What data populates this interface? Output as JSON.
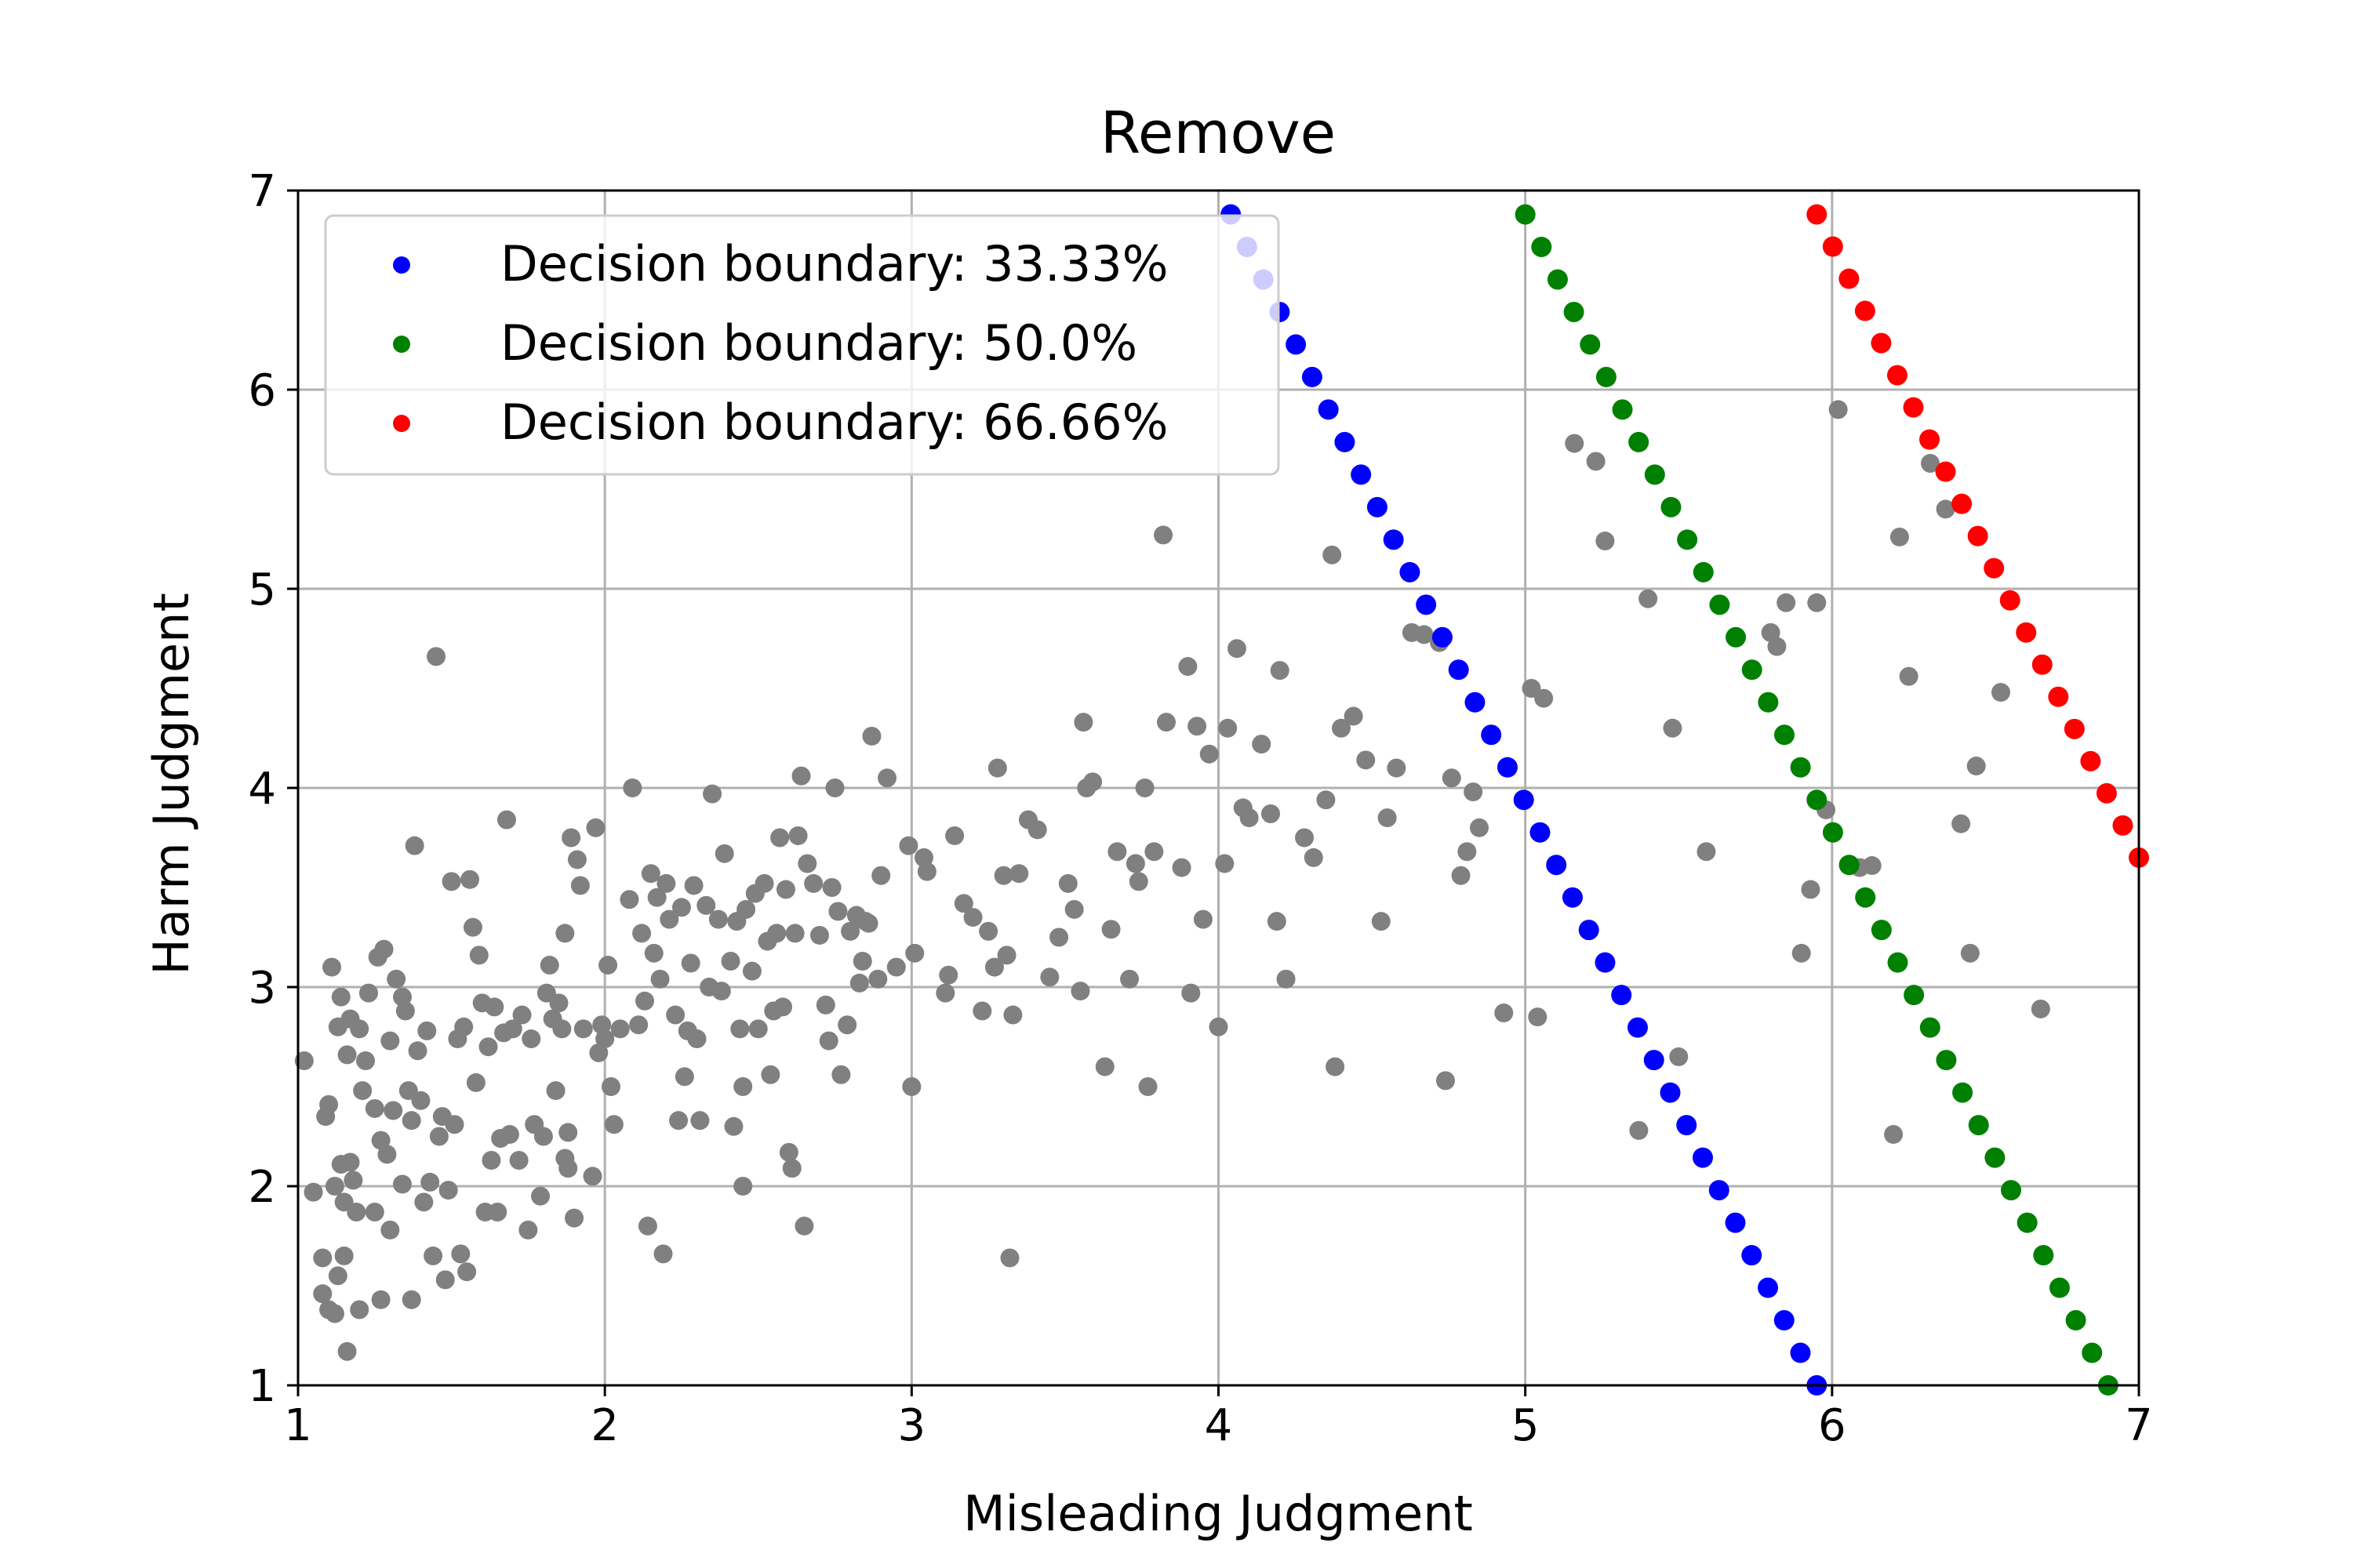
{
  "chart_data": {
    "type": "scatter",
    "title": "Remove",
    "xlabel": "Misleading Judgment",
    "ylabel": "Harm Judgment",
    "xlim": [
      1,
      7
    ],
    "ylim": [
      1,
      7
    ],
    "xticks": [
      "1",
      "2",
      "3",
      "4",
      "5",
      "6",
      "7"
    ],
    "yticks": [
      "1",
      "2",
      "3",
      "4",
      "5",
      "6",
      "7"
    ],
    "grid": true,
    "legend_position": "top-left",
    "colors": {
      "points": "#808080",
      "b33": "#0000ff",
      "b50": "#008000",
      "b66": "#ff0000",
      "grid": "#b0b0b0"
    },
    "series": [
      {
        "name": "Decision boundary: 33.33%",
        "color": "#0000ff",
        "kind": "line-dots",
        "start": [
          4.04,
          6.88
        ],
        "end": [
          5.95,
          1.0
        ],
        "count": 37
      },
      {
        "name": "Decision boundary: 50.0%",
        "color": "#008000",
        "kind": "line-dots",
        "start": [
          5.0,
          6.88
        ],
        "end": [
          6.9,
          1.0
        ],
        "count": 37
      },
      {
        "name": "Decision boundary: 66.66%",
        "color": "#ff0000",
        "kind": "line-dots",
        "start": [
          5.95,
          6.88
        ],
        "end": [
          7.0,
          3.65
        ],
        "count": 21
      }
    ],
    "points": [
      [
        1.02,
        2.63
      ],
      [
        1.05,
        1.97
      ],
      [
        1.08,
        1.64
      ],
      [
        1.08,
        1.46
      ],
      [
        1.09,
        2.35
      ],
      [
        1.1,
        2.41
      ],
      [
        1.1,
        1.38
      ],
      [
        1.11,
        3.1
      ],
      [
        1.12,
        1.36
      ],
      [
        1.12,
        2.0
      ],
      [
        1.13,
        2.8
      ],
      [
        1.13,
        1.55
      ],
      [
        1.14,
        2.11
      ],
      [
        1.14,
        2.95
      ],
      [
        1.15,
        1.65
      ],
      [
        1.15,
        1.92
      ],
      [
        1.16,
        2.66
      ],
      [
        1.16,
        1.17
      ],
      [
        1.17,
        2.12
      ],
      [
        1.17,
        2.84
      ],
      [
        1.18,
        2.03
      ],
      [
        1.19,
        1.87
      ],
      [
        1.2,
        2.79
      ],
      [
        1.2,
        1.38
      ],
      [
        1.21,
        2.48
      ],
      [
        1.22,
        2.63
      ],
      [
        1.23,
        2.97
      ],
      [
        1.25,
        2.39
      ],
      [
        1.25,
        1.87
      ],
      [
        1.26,
        3.15
      ],
      [
        1.27,
        1.43
      ],
      [
        1.27,
        2.23
      ],
      [
        1.28,
        3.19
      ],
      [
        1.29,
        2.16
      ],
      [
        1.3,
        2.73
      ],
      [
        1.3,
        1.78
      ],
      [
        1.31,
        2.38
      ],
      [
        1.32,
        3.04
      ],
      [
        1.34,
        2.01
      ],
      [
        1.34,
        2.95
      ],
      [
        1.35,
        2.88
      ],
      [
        1.36,
        2.48
      ],
      [
        1.37,
        2.33
      ],
      [
        1.37,
        1.43
      ],
      [
        1.38,
        3.71
      ],
      [
        1.39,
        2.68
      ],
      [
        1.4,
        2.43
      ],
      [
        1.41,
        1.92
      ],
      [
        1.42,
        2.78
      ],
      [
        1.43,
        2.02
      ],
      [
        1.44,
        1.65
      ],
      [
        1.45,
        4.66
      ],
      [
        1.46,
        2.25
      ],
      [
        1.47,
        2.35
      ],
      [
        1.48,
        1.53
      ],
      [
        1.49,
        1.98
      ],
      [
        1.5,
        3.53
      ],
      [
        1.51,
        2.31
      ],
      [
        1.52,
        2.74
      ],
      [
        1.53,
        1.66
      ],
      [
        1.54,
        2.8
      ],
      [
        1.55,
        1.57
      ],
      [
        1.56,
        3.54
      ],
      [
        1.57,
        3.3
      ],
      [
        1.58,
        2.52
      ],
      [
        1.59,
        3.16
      ],
      [
        1.6,
        2.92
      ],
      [
        1.61,
        1.87
      ],
      [
        1.62,
        2.7
      ],
      [
        1.63,
        2.13
      ],
      [
        1.64,
        2.9
      ],
      [
        1.65,
        1.87
      ],
      [
        1.66,
        2.24
      ],
      [
        1.67,
        2.77
      ],
      [
        1.68,
        3.84
      ],
      [
        1.69,
        2.26
      ],
      [
        1.7,
        2.79
      ],
      [
        1.72,
        2.13
      ],
      [
        1.73,
        2.86
      ],
      [
        1.75,
        1.78
      ],
      [
        1.76,
        2.74
      ],
      [
        1.77,
        2.31
      ],
      [
        1.79,
        1.95
      ],
      [
        1.8,
        2.25
      ],
      [
        1.81,
        2.97
      ],
      [
        1.82,
        3.11
      ],
      [
        1.83,
        2.84
      ],
      [
        1.84,
        2.48
      ],
      [
        1.85,
        2.92
      ],
      [
        1.86,
        2.79
      ],
      [
        1.87,
        3.27
      ],
      [
        1.87,
        2.14
      ],
      [
        1.88,
        2.27
      ],
      [
        1.88,
        2.09
      ],
      [
        1.89,
        3.75
      ],
      [
        1.9,
        1.84
      ],
      [
        1.91,
        3.64
      ],
      [
        1.92,
        3.51
      ],
      [
        1.93,
        2.79
      ],
      [
        1.96,
        2.05
      ],
      [
        1.97,
        3.8
      ],
      [
        1.98,
        2.67
      ],
      [
        1.99,
        2.81
      ],
      [
        2.0,
        2.74
      ],
      [
        2.01,
        3.11
      ],
      [
        2.02,
        2.5
      ],
      [
        2.03,
        2.31
      ],
      [
        2.05,
        2.79
      ],
      [
        2.08,
        3.44
      ],
      [
        2.09,
        4.0
      ],
      [
        2.11,
        2.81
      ],
      [
        2.12,
        3.27
      ],
      [
        2.13,
        2.93
      ],
      [
        2.14,
        1.8
      ],
      [
        2.15,
        3.57
      ],
      [
        2.16,
        3.17
      ],
      [
        2.17,
        3.45
      ],
      [
        2.18,
        3.04
      ],
      [
        2.19,
        1.66
      ],
      [
        2.2,
        3.52
      ],
      [
        2.21,
        3.34
      ],
      [
        2.23,
        2.86
      ],
      [
        2.24,
        2.33
      ],
      [
        2.25,
        3.4
      ],
      [
        2.26,
        2.55
      ],
      [
        2.27,
        2.78
      ],
      [
        2.28,
        3.12
      ],
      [
        2.29,
        3.51
      ],
      [
        2.3,
        2.74
      ],
      [
        2.31,
        2.33
      ],
      [
        2.33,
        3.41
      ],
      [
        2.34,
        3.0
      ],
      [
        2.35,
        3.97
      ],
      [
        2.37,
        3.34
      ],
      [
        2.38,
        2.98
      ],
      [
        2.39,
        3.67
      ],
      [
        2.41,
        3.13
      ],
      [
        2.42,
        2.3
      ],
      [
        2.43,
        3.33
      ],
      [
        2.44,
        2.79
      ],
      [
        2.45,
        2.5
      ],
      [
        2.45,
        2.0
      ],
      [
        2.46,
        3.39
      ],
      [
        2.48,
        3.08
      ],
      [
        2.49,
        3.47
      ],
      [
        2.5,
        2.79
      ],
      [
        2.52,
        3.52
      ],
      [
        2.53,
        3.23
      ],
      [
        2.54,
        2.56
      ],
      [
        2.55,
        2.88
      ],
      [
        2.56,
        3.27
      ],
      [
        2.57,
        3.75
      ],
      [
        2.58,
        2.9
      ],
      [
        2.59,
        3.49
      ],
      [
        2.6,
        2.17
      ],
      [
        2.61,
        2.09
      ],
      [
        2.62,
        3.27
      ],
      [
        2.63,
        3.76
      ],
      [
        2.64,
        4.06
      ],
      [
        2.65,
        1.8
      ],
      [
        2.66,
        3.62
      ],
      [
        2.68,
        3.52
      ],
      [
        2.7,
        3.26
      ],
      [
        2.72,
        2.91
      ],
      [
        2.73,
        2.73
      ],
      [
        2.74,
        3.5
      ],
      [
        2.75,
        4.0
      ],
      [
        2.76,
        3.38
      ],
      [
        2.77,
        2.56
      ],
      [
        2.79,
        2.81
      ],
      [
        2.8,
        3.28
      ],
      [
        2.82,
        3.36
      ],
      [
        2.83,
        3.02
      ],
      [
        2.84,
        3.13
      ],
      [
        2.85,
        3.33
      ],
      [
        2.86,
        3.32
      ],
      [
        2.87,
        4.26
      ],
      [
        2.89,
        3.04
      ],
      [
        2.9,
        3.56
      ],
      [
        2.92,
        4.05
      ],
      [
        2.95,
        3.1
      ],
      [
        2.99,
        3.71
      ],
      [
        3.0,
        2.5
      ],
      [
        3.01,
        3.17
      ],
      [
        3.04,
        3.65
      ],
      [
        3.05,
        3.58
      ],
      [
        3.11,
        2.97
      ],
      [
        3.12,
        3.06
      ],
      [
        3.14,
        3.76
      ],
      [
        3.17,
        3.42
      ],
      [
        3.2,
        3.35
      ],
      [
        3.23,
        2.88
      ],
      [
        3.25,
        3.28
      ],
      [
        3.27,
        3.1
      ],
      [
        3.28,
        4.1
      ],
      [
        3.3,
        3.56
      ],
      [
        3.31,
        3.16
      ],
      [
        3.32,
        1.64
      ],
      [
        3.33,
        2.86
      ],
      [
        3.35,
        3.57
      ],
      [
        3.38,
        3.84
      ],
      [
        3.41,
        3.79
      ],
      [
        3.45,
        3.05
      ],
      [
        3.48,
        3.25
      ],
      [
        3.51,
        3.52
      ],
      [
        3.53,
        3.39
      ],
      [
        3.55,
        2.98
      ],
      [
        3.56,
        4.33
      ],
      [
        3.57,
        4.0
      ],
      [
        3.59,
        4.03
      ],
      [
        3.63,
        2.6
      ],
      [
        3.65,
        3.29
      ],
      [
        3.67,
        3.68
      ],
      [
        3.71,
        3.04
      ],
      [
        3.73,
        3.62
      ],
      [
        3.74,
        3.53
      ],
      [
        3.76,
        4.0
      ],
      [
        3.77,
        2.5
      ],
      [
        3.79,
        3.68
      ],
      [
        3.82,
        5.27
      ],
      [
        3.83,
        4.33
      ],
      [
        3.88,
        3.6
      ],
      [
        3.9,
        4.61
      ],
      [
        3.91,
        2.97
      ],
      [
        3.93,
        4.31
      ],
      [
        3.95,
        3.34
      ],
      [
        3.97,
        4.17
      ],
      [
        4.0,
        2.8
      ],
      [
        4.02,
        3.62
      ],
      [
        4.03,
        4.3
      ],
      [
        4.06,
        4.7
      ],
      [
        4.08,
        3.9
      ],
      [
        4.1,
        3.85
      ],
      [
        4.14,
        4.22
      ],
      [
        4.17,
        3.87
      ],
      [
        4.19,
        3.33
      ],
      [
        4.2,
        4.59
      ],
      [
        4.22,
        3.04
      ],
      [
        4.28,
        3.75
      ],
      [
        4.31,
        3.65
      ],
      [
        4.35,
        3.94
      ],
      [
        4.37,
        5.17
      ],
      [
        4.38,
        2.6
      ],
      [
        4.4,
        4.3
      ],
      [
        4.44,
        4.36
      ],
      [
        4.48,
        4.14
      ],
      [
        4.53,
        3.33
      ],
      [
        4.55,
        3.85
      ],
      [
        4.58,
        4.1
      ],
      [
        4.63,
        4.78
      ],
      [
        4.67,
        4.77
      ],
      [
        4.72,
        4.73
      ],
      [
        4.74,
        2.53
      ],
      [
        4.76,
        4.05
      ],
      [
        4.79,
        3.56
      ],
      [
        4.81,
        3.68
      ],
      [
        4.83,
        3.98
      ],
      [
        4.85,
        3.8
      ],
      [
        4.93,
        2.87
      ],
      [
        5.02,
        4.5
      ],
      [
        5.04,
        2.85
      ],
      [
        5.06,
        4.45
      ],
      [
        5.16,
        5.73
      ],
      [
        5.23,
        5.64
      ],
      [
        5.26,
        5.24
      ],
      [
        5.37,
        2.28
      ],
      [
        5.4,
        4.95
      ],
      [
        5.48,
        4.3
      ],
      [
        5.5,
        2.65
      ],
      [
        5.59,
        3.68
      ],
      [
        5.8,
        4.78
      ],
      [
        5.82,
        4.71
      ],
      [
        5.85,
        4.93
      ],
      [
        5.9,
        3.17
      ],
      [
        5.93,
        3.49
      ],
      [
        5.95,
        4.93
      ],
      [
        5.98,
        3.89
      ],
      [
        6.02,
        5.9
      ],
      [
        6.09,
        3.6
      ],
      [
        6.13,
        3.61
      ],
      [
        6.2,
        2.26
      ],
      [
        6.22,
        5.26
      ],
      [
        6.25,
        4.56
      ],
      [
        6.32,
        5.63
      ],
      [
        6.37,
        5.4
      ],
      [
        6.42,
        3.82
      ],
      [
        6.45,
        3.17
      ],
      [
        6.47,
        4.11
      ],
      [
        6.55,
        4.48
      ],
      [
        6.68,
        2.89
      ]
    ]
  }
}
